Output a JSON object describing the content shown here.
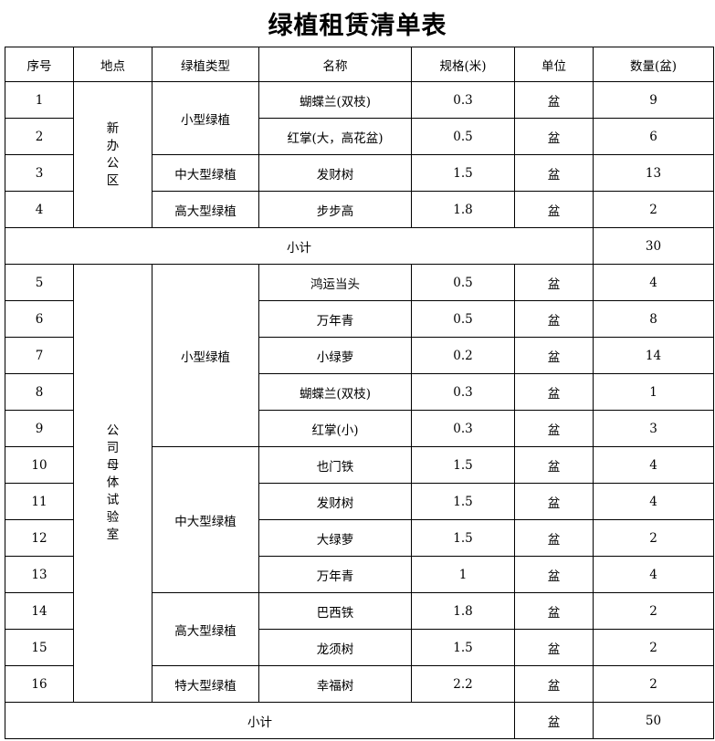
{
  "title": "绿植租赁清单表",
  "headers": [
    "序号",
    "地点",
    "绿植类型",
    "名称",
    "规格(米)",
    "单位",
    "数量(盆)"
  ],
  "sections": [
    {
      "location": "新办公区",
      "groups": [
        {
          "type": "小型绿植",
          "items": [
            {
              "no": "1",
              "name": "蝴蝶兰(双枝)",
              "spec": "0.3",
              "unit": "盆",
              "qty": "9"
            },
            {
              "no": "2",
              "name": "红掌(大，高花盆)",
              "spec": "0.5",
              "unit": "盆",
              "qty": "6"
            }
          ]
        },
        {
          "type": "中大型绿植",
          "items": [
            {
              "no": "3",
              "name": "发财树",
              "spec": "1.5",
              "unit": "盆",
              "qty": "13"
            }
          ]
        },
        {
          "type": "高大型绿植",
          "items": [
            {
              "no": "4",
              "name": "步步高",
              "spec": "1.8",
              "unit": "盆",
              "qty": "2"
            }
          ]
        }
      ],
      "subtotal": {
        "label": "小计",
        "unit": "",
        "qty": "30"
      }
    },
    {
      "location": "公司母体试验室",
      "groups": [
        {
          "type": "小型绿植",
          "items": [
            {
              "no": "5",
              "name": "鸿运当头",
              "spec": "0.5",
              "unit": "盆",
              "qty": "4"
            },
            {
              "no": "6",
              "name": "万年青",
              "spec": "0.5",
              "unit": "盆",
              "qty": "8"
            },
            {
              "no": "7",
              "name": "小绿萝",
              "spec": "0.2",
              "unit": "盆",
              "qty": "14"
            },
            {
              "no": "8",
              "name": "蝴蝶兰(双枝)",
              "spec": "0.3",
              "unit": "盆",
              "qty": "1"
            },
            {
              "no": "9",
              "name": "红掌(小)",
              "spec": "0.3",
              "unit": "盆",
              "qty": "3"
            }
          ]
        },
        {
          "type": "中大型绿植",
          "items": [
            {
              "no": "10",
              "name": "也门铁",
              "spec": "1.5",
              "unit": "盆",
              "qty": "4"
            },
            {
              "no": "11",
              "name": "发财树",
              "spec": "1.5",
              "unit": "盆",
              "qty": "4"
            },
            {
              "no": "12",
              "name": "大绿萝",
              "spec": "1.5",
              "unit": "盆",
              "qty": "2"
            },
            {
              "no": "13",
              "name": "万年青",
              "spec": "1",
              "unit": "盆",
              "qty": "4"
            }
          ]
        },
        {
          "type": "高大型绿植",
          "items": [
            {
              "no": "14",
              "name": "巴西铁",
              "spec": "1.8",
              "unit": "盆",
              "qty": "2"
            },
            {
              "no": "15",
              "name": "龙须树",
              "spec": "1.5",
              "unit": "盆",
              "qty": "2"
            }
          ]
        },
        {
          "type": "特大型绿植",
          "items": [
            {
              "no": "16",
              "name": "幸福树",
              "spec": "2.2",
              "unit": "盆",
              "qty": "2"
            }
          ]
        }
      ],
      "subtotal": {
        "label": "小计",
        "unit": "盆",
        "qty": "50"
      }
    }
  ]
}
